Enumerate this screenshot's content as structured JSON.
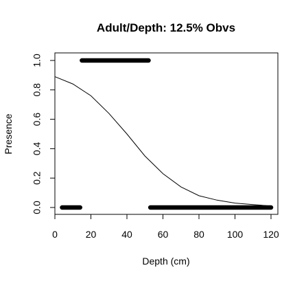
{
  "chart_data": {
    "type": "scatter",
    "title": "Adult/Depth: 12.5% Obvs",
    "xlabel": "Depth (cm)",
    "ylabel": "Presence",
    "xlim": [
      0,
      120
    ],
    "ylim": [
      0,
      1
    ],
    "x_ticks": [
      "0",
      "20",
      "40",
      "60",
      "80",
      "100",
      "120"
    ],
    "y_ticks": [
      "0.0",
      "0.2",
      "0.4",
      "0.6",
      "0.8",
      "1.0"
    ],
    "grid": false,
    "legend": "none",
    "series": [
      {
        "type": "points",
        "color": "#000000",
        "segments": [
          {
            "x_start": 4,
            "x_end": 14,
            "y": 0
          },
          {
            "x_start": 53,
            "x_end": 120,
            "y": 0
          },
          {
            "x_start": 15,
            "x_end": 52,
            "y": 1
          }
        ]
      },
      {
        "type": "line",
        "color": "#000000",
        "x": [
          0,
          10,
          20,
          30,
          40,
          50,
          60,
          70,
          80,
          90,
          100,
          110,
          120
        ],
        "y": [
          0.89,
          0.84,
          0.76,
          0.64,
          0.5,
          0.35,
          0.23,
          0.14,
          0.08,
          0.05,
          0.03,
          0.02,
          0.01
        ]
      }
    ]
  }
}
